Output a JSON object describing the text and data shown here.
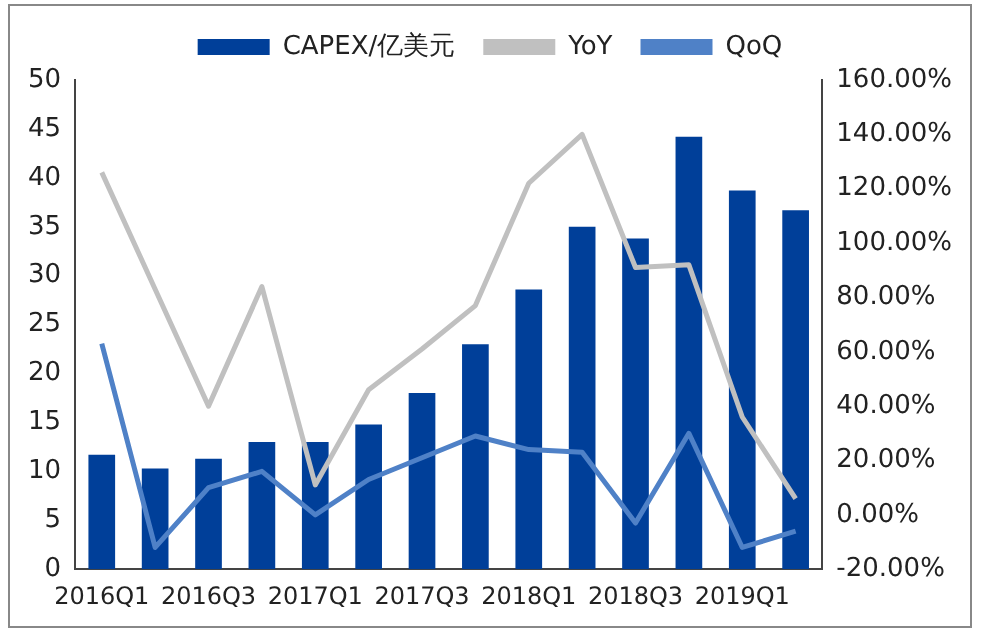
{
  "chart_data": {
    "type": "bar",
    "categories": [
      "2016Q1",
      null,
      "2016Q3",
      null,
      "2017Q1",
      null,
      "2017Q3",
      null,
      "2018Q1",
      null,
      "2018Q3",
      null,
      "2019Q1",
      null
    ],
    "series": [
      {
        "name": "CAPEX/亿美元",
        "color": "#003f99",
        "values": [
          11.7,
          10.3,
          11.3,
          13.0,
          13.0,
          14.8,
          18.0,
          23.0,
          28.6,
          35.0,
          33.8,
          44.2,
          38.7,
          36.7
        ]
      },
      {
        "name": "YoY",
        "type": "line",
        "axis": "y2",
        "color": "#c0c0c0",
        "values": [
          126,
          83,
          40,
          84,
          11,
          46,
          61,
          77,
          122,
          140,
          91,
          92,
          36,
          6
        ]
      },
      {
        "name": "QoQ",
        "type": "line",
        "axis": "y2",
        "color": "#4f81c7",
        "values": [
          63,
          -12,
          10,
          16,
          0,
          13,
          21,
          29,
          24,
          23,
          -3,
          30,
          -12,
          -6
        ]
      }
    ],
    "ylim": [
      0,
      50
    ],
    "yticks": [
      0,
      5,
      10,
      15,
      20,
      25,
      30,
      35,
      40,
      45,
      50
    ],
    "y2lim": [
      -20,
      160
    ],
    "y2ticks": [
      {
        "value": -20,
        "label": "-20.00%"
      },
      {
        "value": 0,
        "label": "0.00%"
      },
      {
        "value": 20,
        "label": "20.00%"
      },
      {
        "value": 40,
        "label": "40.00%"
      },
      {
        "value": 60,
        "label": "60.00%"
      },
      {
        "value": 80,
        "label": "80.00%"
      },
      {
        "value": 100,
        "label": "100.00%"
      },
      {
        "value": 120,
        "label": "120.00%"
      },
      {
        "value": 140,
        "label": "140.00%"
      },
      {
        "value": 160,
        "label": "160.00%"
      }
    ],
    "legend": "top",
    "grid": false,
    "marker": "none",
    "line_style": "solid"
  }
}
